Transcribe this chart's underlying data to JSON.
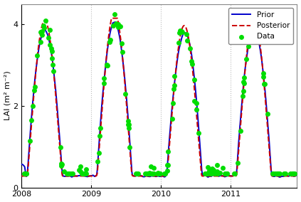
{
  "ylabel": "LAI (m² m⁻²)",
  "xlim_start": 2008.0,
  "xlim_end": 2011.95,
  "ylim": [
    0,
    4.5
  ],
  "yticks": [
    0,
    2,
    4
  ],
  "xtick_labels": [
    "2008",
    "2009",
    "2010",
    "2011"
  ],
  "xtick_positions": [
    2008.0,
    2009.0,
    2010.0,
    2011.0
  ],
  "prior_color": "#0000cc",
  "posterior_color": "#cc0000",
  "data_color": "#00dd00",
  "grid_color": "#bbbbbb",
  "background_color": "#ffffff",
  "prior_lw": 1.4,
  "posterior_lw": 1.4,
  "data_ms": 25,
  "legend_order": [
    "Prior",
    "Posterior",
    "Data"
  ]
}
